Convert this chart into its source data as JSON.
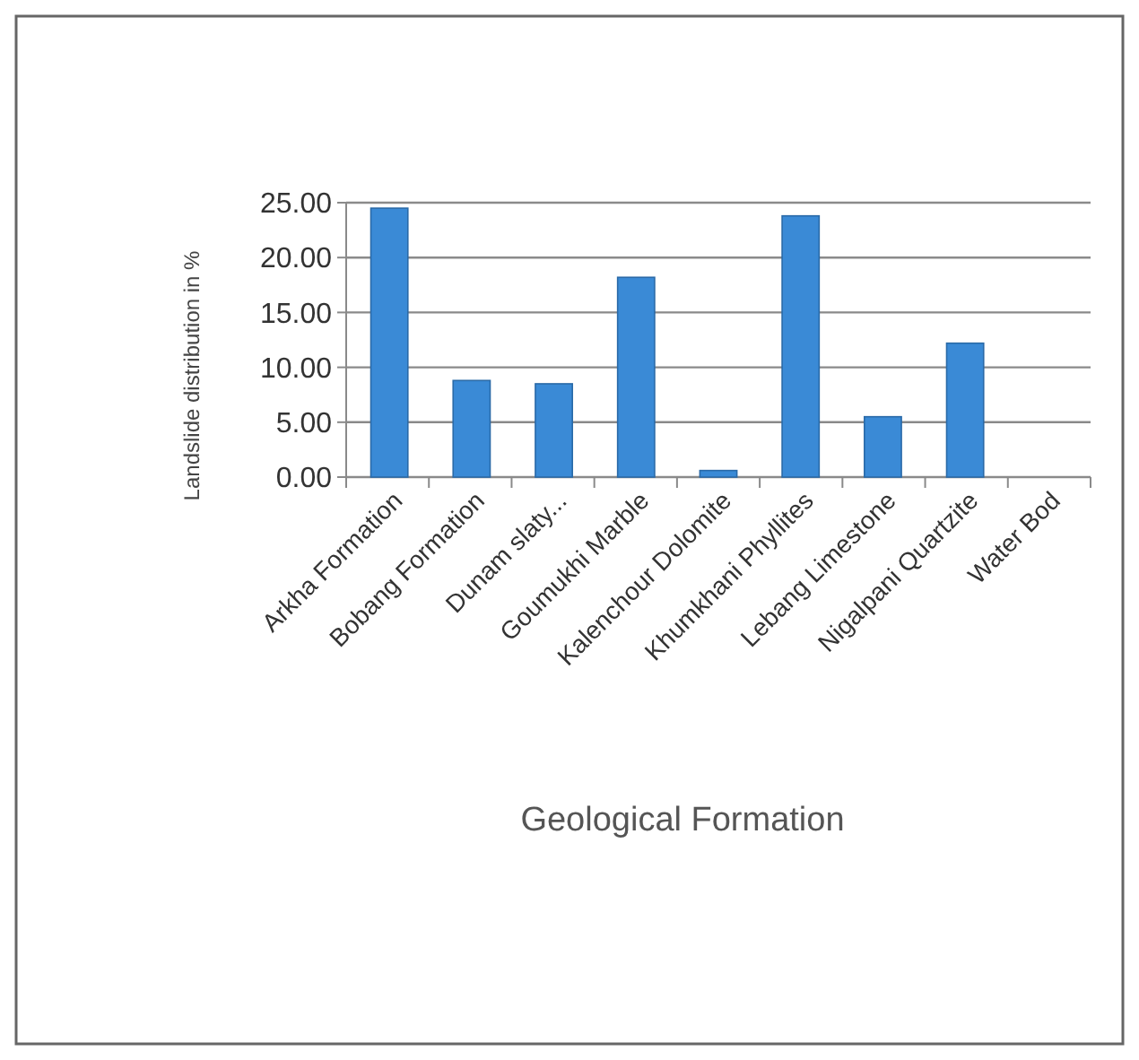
{
  "chart_data": {
    "type": "bar",
    "xlabel": "Geological Formation",
    "ylabel": "Landslide distribution in %",
    "categories": [
      "Arkha Formation",
      "Bobang Formation",
      "Dunam slaty...",
      "Goumukhi Marble",
      "Kalenchour Dolomite",
      "Khumkhani Phyllites",
      "Lebang Limestone",
      "Nigalpani Quartzite",
      "Water Bod"
    ],
    "values": [
      24.5,
      8.8,
      8.5,
      18.2,
      0.6,
      23.8,
      5.5,
      12.2,
      0
    ],
    "color": "#3a8ad6",
    "ylim": [
      0,
      25
    ],
    "yticks": [
      {
        "value": 0,
        "label": "0.00"
      },
      {
        "value": 5,
        "label": "5.00"
      },
      {
        "value": 10,
        "label": "10.00"
      },
      {
        "value": 15,
        "label": "15.00"
      },
      {
        "value": 20,
        "label": "20.00"
      },
      {
        "value": 25,
        "label": "25.00"
      }
    ],
    "grid": "y"
  }
}
